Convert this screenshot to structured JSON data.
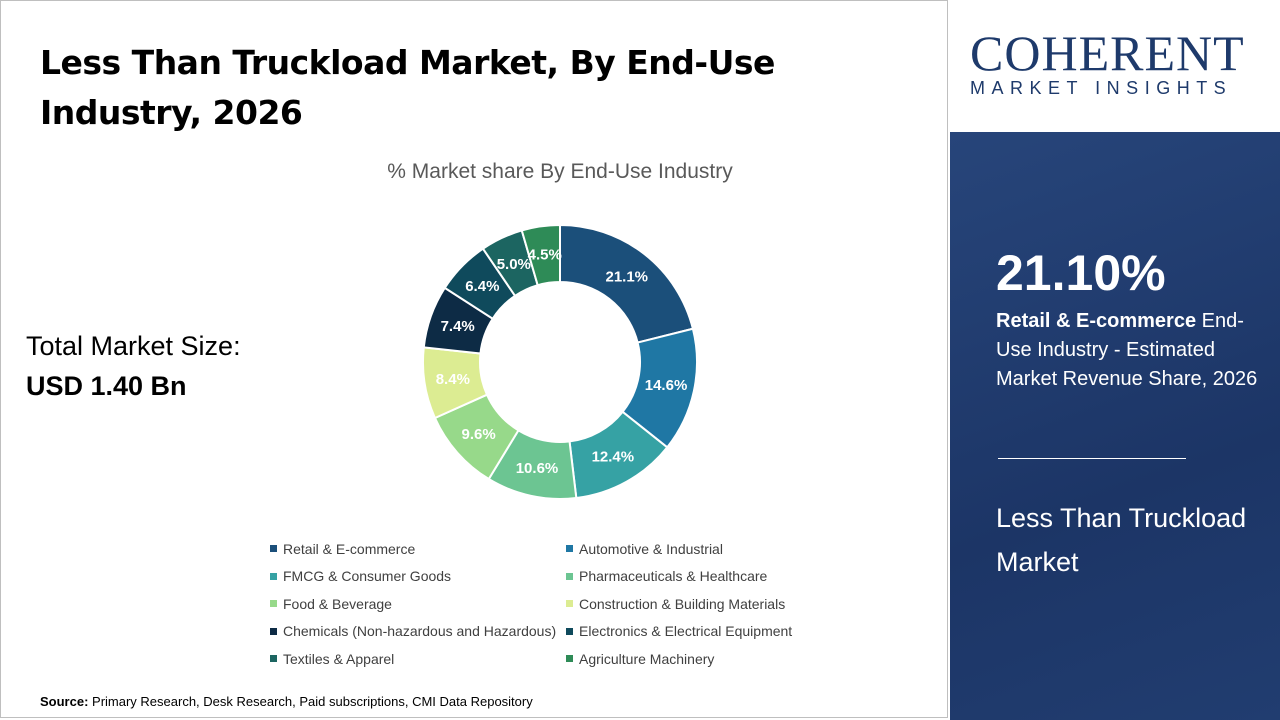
{
  "title": "Less Than Truckload Market, By End-Use Industry, 2026",
  "total": {
    "label": "Total Market Size:",
    "value": "USD 1.40 Bn"
  },
  "source": {
    "label": "Source:",
    "text": " Primary Research, Desk Research, Paid subscriptions, CMI Data Repository"
  },
  "logo": {
    "line1": "COHERENT",
    "line2": "MARKET INSIGHTS"
  },
  "panel": {
    "highlight": "21.10%",
    "desc_bold": "Retail & E-commerce",
    "desc_rest": " End-Use Industry - Estimated Market Revenue Share, 2026",
    "market": "Less Than Truckload Market"
  },
  "chart_data": {
    "type": "pie",
    "donut": true,
    "title": "% Market share By End-Use Industry",
    "legend_position": "bottom",
    "categories": [
      "Retail & E-commerce",
      "Automotive & Industrial",
      "FMCG & Consumer Goods",
      "Pharmaceuticals & Healthcare",
      "Food & Beverage",
      "Construction & Building Materials",
      "Chemicals (Non-hazardous and Hazardous)",
      "Electronics & Electrical Equipment",
      "Textiles & Apparel",
      "Agriculture Machinery"
    ],
    "values": [
      21.1,
      14.6,
      12.4,
      10.6,
      9.6,
      8.4,
      7.4,
      6.4,
      5.0,
      4.5
    ],
    "labels": [
      "21.1%",
      "14.6%",
      "12.4%",
      "10.6%",
      "9.6%",
      "8.4%",
      "7.4%",
      "6.4%",
      "5.0%",
      "4.5%"
    ],
    "colors": [
      "#1b4f7a",
      "#1f77a4",
      "#36a2a4",
      "#6cc592",
      "#97d98a",
      "#dcec92",
      "#0d2b45",
      "#0f4a5c",
      "#1c6561",
      "#2e8b57"
    ]
  }
}
